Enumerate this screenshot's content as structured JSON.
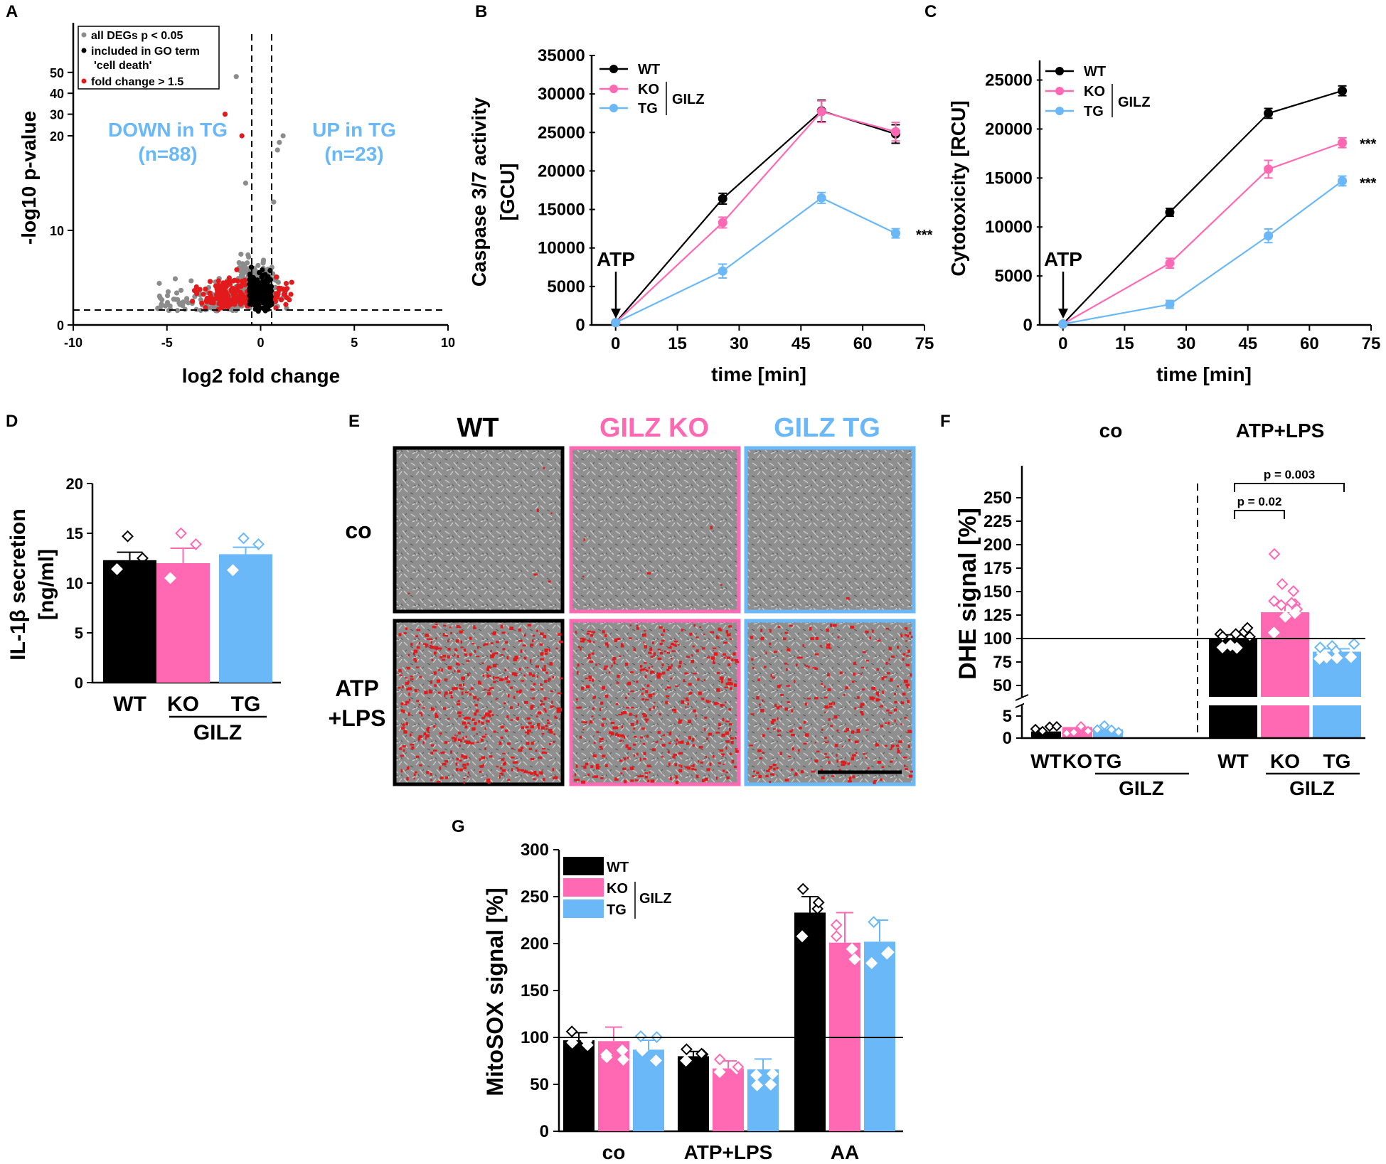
{
  "colors": {
    "wt": "#000000",
    "ko": "#ff69b4",
    "tg": "#6ab8f7",
    "red": "#e31a1c",
    "grey": "#8c8c8c",
    "cell_grey": "#8f8f8f"
  },
  "chart_data": [
    {
      "panel": "A",
      "type": "scatter",
      "xlabel": "log2 fold change",
      "ylabel": "-log10 p-value",
      "xlim": [
        -10,
        10
      ],
      "xticks": [
        "-10",
        "-5",
        "0",
        "5",
        "10"
      ],
      "yticks": [
        "0",
        "10",
        "20",
        "30",
        "40",
        "50"
      ],
      "legend": [
        "all DEGs p < 0.05",
        "included in GO term 'cell death'",
        "fold change > 1.5"
      ],
      "annotations": [
        {
          "text": "DOWN in TG",
          "count": "(n=88)"
        },
        {
          "text": "UP in TG",
          "count": "(n=23)"
        }
      ],
      "thresholds": {
        "fold_change_log2": [
          -0.585,
          0.585
        ],
        "p_line": 1.3
      },
      "outliers": [
        {
          "x": -1.3,
          "y": 48
        },
        {
          "x": -1.9,
          "y": 30
        },
        {
          "x": -1.0,
          "y": 20
        },
        {
          "x": 1.2,
          "y": 20
        },
        {
          "x": 1.0,
          "y": 19.3
        },
        {
          "x": 0.9,
          "y": 18.5
        },
        {
          "x": -0.8,
          "y": 15
        },
        {
          "x": 0.7,
          "y": 13
        }
      ]
    },
    {
      "panel": "B",
      "type": "line",
      "ylabel": "Caspase 3/7 activity [GCU]",
      "xlabel": "time [min]",
      "x": [
        0,
        26,
        50,
        68
      ],
      "ylim": [
        0,
        35000
      ],
      "xlim": [
        -5,
        75
      ],
      "xticks": [
        "0",
        "15",
        "30",
        "45",
        "60",
        "75"
      ],
      "yticks": [
        "0",
        "5000",
        "10000",
        "15000",
        "20000",
        "25000",
        "30000",
        "35000"
      ],
      "annotation": "ATP",
      "group_label": "GILZ",
      "significance": "***",
      "series": [
        {
          "name": "WT",
          "values": [
            300,
            16400,
            27800,
            24800
          ],
          "err": [
            0,
            700,
            1400,
            1200
          ]
        },
        {
          "name": "KO",
          "values": [
            300,
            13300,
            27700,
            25100
          ],
          "err": [
            0,
            700,
            1400,
            1200
          ]
        },
        {
          "name": "TG",
          "values": [
            300,
            7000,
            16500,
            11900
          ],
          "err": [
            0,
            900,
            700,
            600
          ]
        }
      ]
    },
    {
      "panel": "C",
      "type": "line",
      "ylabel": "Cytotoxicity [RCU]",
      "xlabel": "time [min]",
      "x": [
        0,
        26,
        50,
        68
      ],
      "ylim": [
        0,
        27000
      ],
      "xlim": [
        -5,
        75
      ],
      "xticks": [
        "0",
        "15",
        "30",
        "45",
        "60",
        "75"
      ],
      "yticks": [
        "0",
        "5000",
        "10000",
        "15000",
        "20000",
        "25000"
      ],
      "annotation": "ATP",
      "group_label": "GILZ",
      "significance": [
        "***",
        "***"
      ],
      "series": [
        {
          "name": "WT",
          "values": [
            100,
            11500,
            21600,
            23900
          ],
          "err": [
            0,
            400,
            500,
            500
          ]
        },
        {
          "name": "KO",
          "values": [
            100,
            6300,
            15900,
            18600
          ],
          "err": [
            0,
            500,
            900,
            500
          ]
        },
        {
          "name": "TG",
          "values": [
            100,
            2100,
            9100,
            14700
          ],
          "err": [
            0,
            400,
            700,
            500
          ]
        }
      ]
    },
    {
      "panel": "D",
      "type": "bar",
      "ylabel": "IL-1β secretion [ng/ml]",
      "categories": [
        "WT",
        "KO",
        "TG"
      ],
      "group_label": "GILZ",
      "values": [
        12.3,
        12.0,
        12.9
      ],
      "err": [
        0.8,
        1.5,
        0.7
      ],
      "points": [
        [
          14.7,
          12.5,
          11.4
        ],
        [
          15.0,
          13.9,
          10.5
        ],
        [
          14.5,
          13.9,
          11.3
        ]
      ],
      "ylim": [
        0,
        20
      ],
      "yticks": [
        "0",
        "5",
        "10",
        "15",
        "20"
      ]
    },
    {
      "panel": "F",
      "type": "bar",
      "ylabel": "DHE signal [%]",
      "groups": [
        "co",
        "ATP+LPS"
      ],
      "categories": [
        "WT",
        "KO",
        "TG",
        "WT",
        "KO",
        "TG"
      ],
      "group_label": "GILZ",
      "values": [
        1.5,
        2.5,
        2.0,
        100,
        128,
        86
      ],
      "err": [
        0.5,
        0.6,
        0.4,
        4,
        8,
        3
      ],
      "yticks": [
        "0",
        "5",
        "50",
        "75",
        "100",
        "125",
        "150",
        "175",
        "200",
        "225",
        "250"
      ],
      "reference_line": 100,
      "comparisons": [
        {
          "label": "p = 0.02"
        },
        {
          "label": "p = 0.003"
        }
      ]
    },
    {
      "panel": "G",
      "type": "bar",
      "ylabel": "MitoSOX signal [%]",
      "groups": [
        "co",
        "ATP+LPS",
        "AA"
      ],
      "series": [
        {
          "name": "WT",
          "values": [
            97,
            80,
            233
          ],
          "err": [
            8,
            5,
            17
          ]
        },
        {
          "name": "KO",
          "values": [
            96,
            67,
            201
          ],
          "err": [
            15,
            8,
            32
          ]
        },
        {
          "name": "TG",
          "values": [
            87,
            66,
            202
          ],
          "err": [
            10,
            11,
            23
          ]
        }
      ],
      "group_label": "GILZ",
      "reference_line": 100,
      "ylim": [
        0,
        300
      ],
      "yticks": [
        "0",
        "50",
        "100",
        "150",
        "200",
        "250",
        "300"
      ]
    }
  ],
  "panel_letters": [
    "A",
    "B",
    "C",
    "D",
    "E",
    "F",
    "G"
  ],
  "panelE": {
    "column_labels": [
      "WT",
      "GILZ KO",
      "GILZ TG"
    ],
    "row_labels": [
      "co",
      "ATP",
      "+LPS"
    ],
    "red_density": [
      [
        0.004,
        0.003,
        0.0005
      ],
      [
        0.3,
        0.26,
        0.17
      ]
    ]
  },
  "labels": {
    "a_pvalue_line": "all DEGs p < 0.05",
    "a_go_line1": "included in GO term",
    "a_go_line2": "'cell death'",
    "a_fc_line": "fold change > 1.5",
    "a_down": "DOWN in TG",
    "a_down_n": "(n=88)",
    "a_up": "UP in TG",
    "a_up_n": "(n=23)",
    "a_ylabel": "-log10 p-value",
    "a_xlabel": "log2 fold change",
    "b_ylabel1": "Caspase 3/7 activity",
    "b_ylabel2": "[GCU]",
    "c_ylabel": "Cytotoxicity [RCU]",
    "time_label": "time [min]",
    "atp": "ATP",
    "gilz": "GILZ",
    "wt": "WT",
    "ko": "KO",
    "tg": "TG",
    "sig": "***",
    "d_ylabel1": "IL-1β secretion",
    "d_ylabel2": "[ng/ml]",
    "f_ylabel": "DHE signal [%]",
    "co": "co",
    "atp_lps": "ATP+LPS",
    "aa": "AA",
    "p002": "p = 0.02",
    "p0003": "p = 0.003",
    "g_ylabel": "MitoSOX signal [%]"
  }
}
